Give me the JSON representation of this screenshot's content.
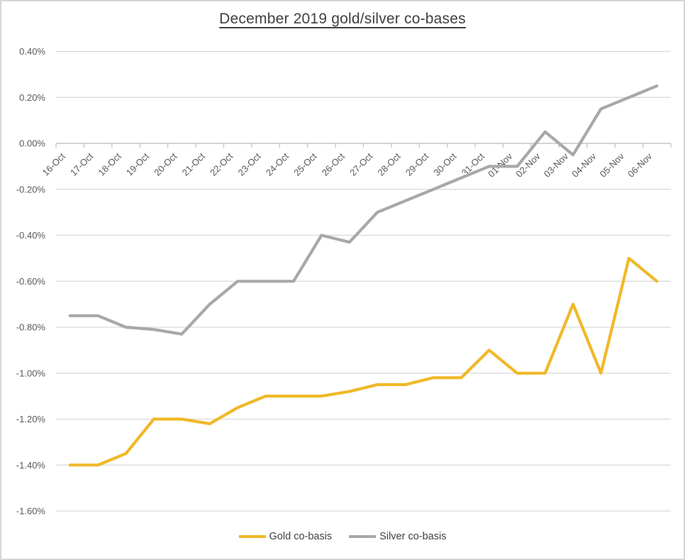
{
  "chart_data": {
    "type": "line",
    "title": "December 2019 gold/silver co-bases",
    "categories": [
      "16-Oct",
      "17-Oct",
      "18-Oct",
      "19-Oct",
      "20-Oct",
      "21-Oct",
      "22-Oct",
      "23-Oct",
      "24-Oct",
      "25-Oct",
      "26-Oct",
      "27-Oct",
      "28-Oct",
      "29-Oct",
      "30-Oct",
      "31-Oct",
      "01-Nov",
      "02-Nov",
      "03-Nov",
      "04-Nov",
      "05-Nov",
      "06-Nov"
    ],
    "series": [
      {
        "name": "Gold co-basis",
        "color": "#F0B929",
        "values": [
          -1.4,
          -1.4,
          -1.35,
          -1.2,
          -1.2,
          -1.22,
          -1.15,
          -1.1,
          -1.1,
          -1.1,
          -1.08,
          -1.05,
          -1.05,
          -1.02,
          -1.02,
          -0.9,
          -1.0,
          -1.0,
          -0.7,
          -1.0,
          -0.5,
          -0.6
        ]
      },
      {
        "name": "Silver co-basis",
        "color": "#A8A8A8",
        "values": [
          -0.75,
          -0.75,
          -0.8,
          -0.81,
          -0.83,
          -0.7,
          -0.6,
          -0.6,
          -0.6,
          -0.4,
          -0.43,
          -0.3,
          -0.25,
          -0.2,
          -0.15,
          -0.1,
          -0.1,
          0.05,
          -0.05,
          0.15,
          0.2,
          0.25
        ]
      }
    ],
    "y_axis": {
      "unit": "%",
      "ylim": [
        -1.6,
        0.4
      ],
      "tick_step": 0.2,
      "ticks": [
        {
          "value": 0.4,
          "label": "0.40%"
        },
        {
          "value": 0.2,
          "label": "0.20%"
        },
        {
          "value": 0.0,
          "label": "0.00%"
        },
        {
          "value": -0.2,
          "label": "-0.20%"
        },
        {
          "value": -0.4,
          "label": "-0.40%"
        },
        {
          "value": -0.6,
          "label": "-0.60%"
        },
        {
          "value": -0.8,
          "label": "-0.80%"
        },
        {
          "value": -1.0,
          "label": "-1.00%"
        },
        {
          "value": -1.2,
          "label": "-1.20%"
        },
        {
          "value": -1.4,
          "label": "-1.40%"
        },
        {
          "value": -1.6,
          "label": "-1.60%"
        }
      ],
      "grid": true
    },
    "x_axis": {
      "label_rotation_deg": -45,
      "axis_cross_value": 0.0
    },
    "legend_position": "bottom",
    "colors": {
      "gridline": "#D9D9D9",
      "axis": "#BFBFBF",
      "axis_text": "#595959",
      "title_text": "#404040"
    }
  }
}
